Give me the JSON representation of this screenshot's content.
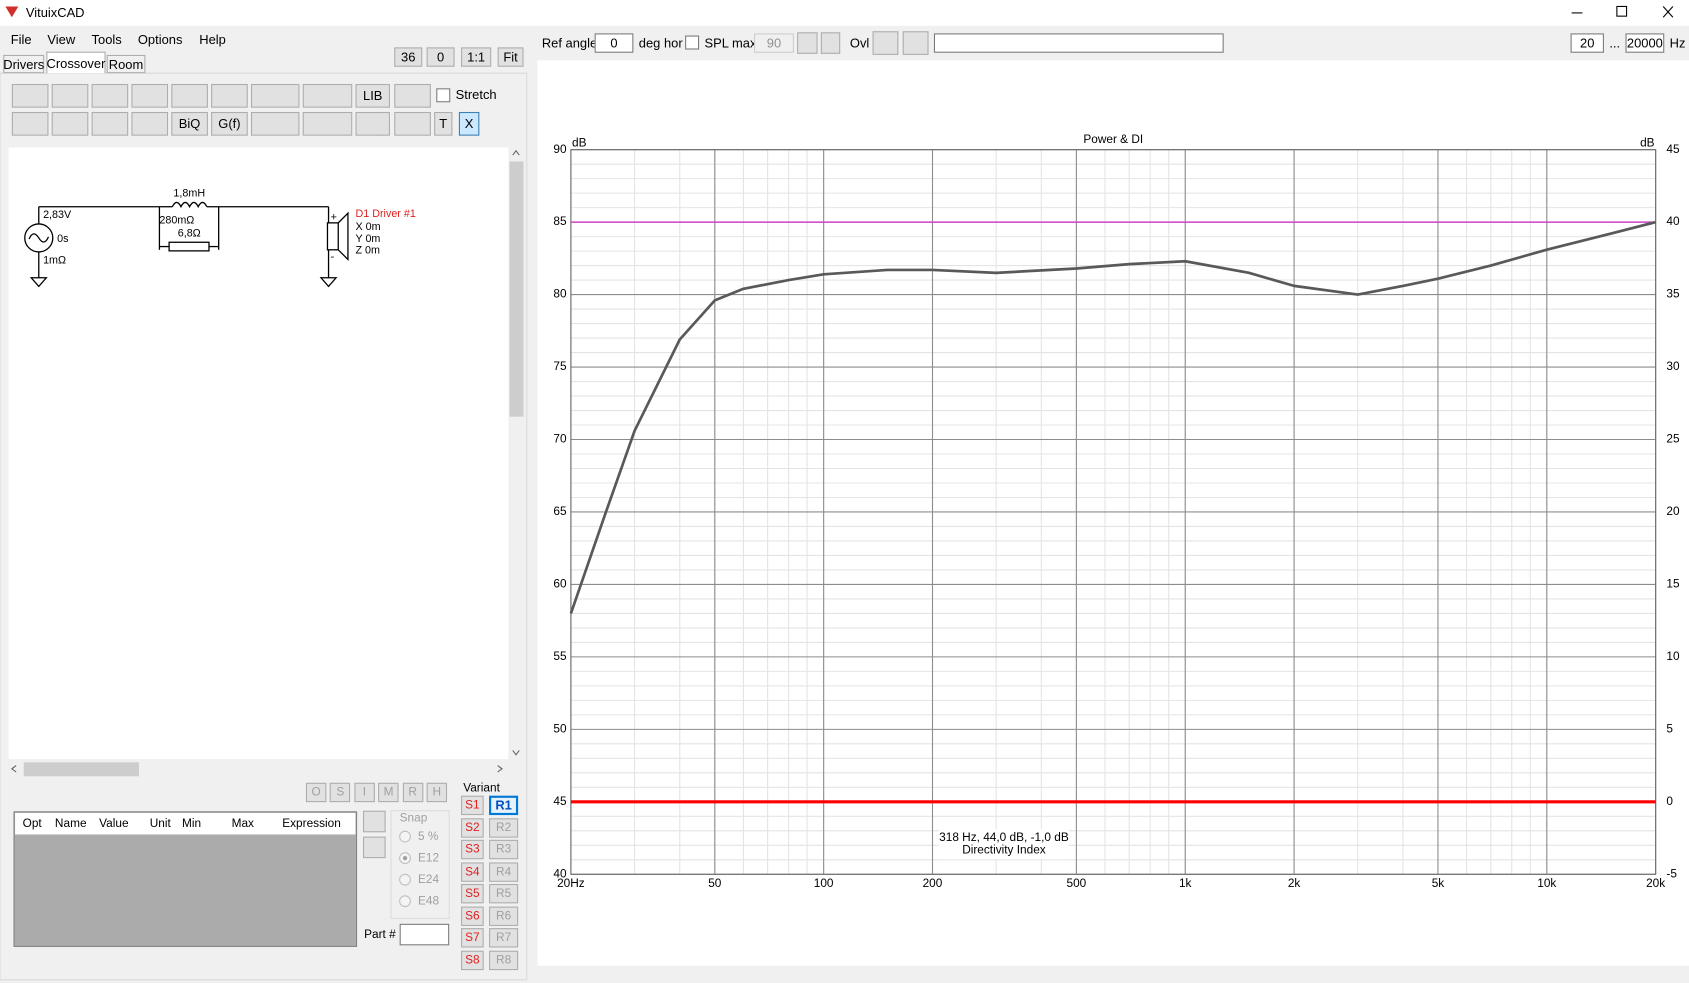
{
  "window": {
    "title": "VituixCAD",
    "menu": [
      "File",
      "View",
      "Tools",
      "Options",
      "Help"
    ]
  },
  "zoom_buttons": [
    "36",
    "0",
    "1:1",
    "Fit"
  ],
  "tabs": [
    "Drivers",
    "Crossover",
    "Room"
  ],
  "toolbar": {
    "lib": "LIB",
    "stretch": "Stretch",
    "biq": "BiQ",
    "gf": "G(f)",
    "t": "T",
    "x": "X"
  },
  "schematic": {
    "source_voltage": "2,83V",
    "source_delay": "0s",
    "source_resistance": "1mΩ",
    "inductor": "1,8mH",
    "inductor_resistance": "280mΩ",
    "resistor": "6,8Ω",
    "driver_name": "D1 Driver #1",
    "driver_x": "X 0m",
    "driver_y": "Y 0m",
    "driver_z": "Z 0m",
    "plus": "+",
    "minus": "-"
  },
  "optimizer_buttons": [
    "O",
    "S",
    "I",
    "M",
    "R",
    "H"
  ],
  "table_headers": [
    "Opt",
    "Name",
    "Value",
    "Unit",
    "Min",
    "Max",
    "Expression"
  ],
  "snap": {
    "label": "Snap",
    "options": [
      "5 %",
      "E12",
      "E24",
      "E48"
    ]
  },
  "part_label": "Part #",
  "variant": {
    "label": "Variant",
    "s": [
      "S1",
      "S2",
      "S3",
      "S4",
      "S5",
      "S6",
      "S7",
      "S8"
    ],
    "r": [
      "R1",
      "R2",
      "R3",
      "R4",
      "R5",
      "R6",
      "R7",
      "R8"
    ]
  },
  "chart_toolbar": {
    "ref_angle_label": "Ref angle",
    "ref_angle": "0",
    "deg_hor": "deg hor",
    "spl_max_label": "SPL max",
    "spl_max": "90",
    "ovl": "Ovl",
    "f_min": "20",
    "ellipsis": "...",
    "f_max": "20000",
    "hz": "Hz"
  },
  "chart_data": {
    "type": "line",
    "title": "Power & DI",
    "ylabel": "dB",
    "y2label": "dB",
    "xscale": "log",
    "grid": true,
    "minor_grid": true,
    "x": [
      20,
      25,
      30,
      40,
      50,
      60,
      80,
      100,
      150,
      200,
      300,
      500,
      700,
      1000,
      1500,
      2000,
      3000,
      4000,
      5000,
      7000,
      10000,
      15000,
      20000
    ],
    "xlim": [
      20,
      20000
    ],
    "xticks": [
      {
        "value": 20,
        "label": "20Hz"
      },
      50,
      100,
      200,
      500,
      {
        "value": 1000,
        "label": "1k"
      },
      {
        "value": 2000,
        "label": "2k"
      },
      {
        "value": 5000,
        "label": "5k"
      },
      {
        "value": 10000,
        "label": "10k"
      },
      {
        "value": 20000,
        "label": "20k"
      }
    ],
    "ylim": [
      40,
      90
    ],
    "yticks": [
      40,
      45,
      50,
      55,
      60,
      65,
      70,
      75,
      80,
      85,
      90
    ],
    "y2lim": [
      -5,
      45
    ],
    "y2ticks": [
      -5,
      0,
      5,
      10,
      15,
      20,
      25,
      30,
      35,
      40,
      45
    ],
    "series": [
      {
        "color": "#595959",
        "values": [
          58,
          65,
          70.6,
          76.9,
          79.6,
          80.4,
          81,
          81.4,
          81.7,
          81.7,
          81.5,
          81.8,
          82.1,
          82.3,
          81.5,
          80.6,
          80,
          80.6,
          81.1,
          82,
          83.1,
          84.2,
          85
        ]
      },
      {
        "color": "#ff0000",
        "axis": "y2",
        "values": [
          0,
          0,
          0,
          0,
          0,
          0,
          0,
          0,
          0,
          0,
          0,
          0,
          0,
          0,
          0,
          0,
          0,
          0,
          0,
          0,
          0,
          0,
          0
        ]
      },
      {
        "color": "#cc44cc",
        "values": [
          85,
          85,
          85,
          85,
          85,
          85,
          85,
          85,
          85,
          85,
          85,
          85,
          85,
          85,
          85,
          85,
          85,
          85,
          85,
          85,
          85,
          85,
          85
        ]
      }
    ],
    "annotation": [
      "318 Hz, 44,0 dB, -1,0 dB",
      "Directivity Index"
    ]
  }
}
